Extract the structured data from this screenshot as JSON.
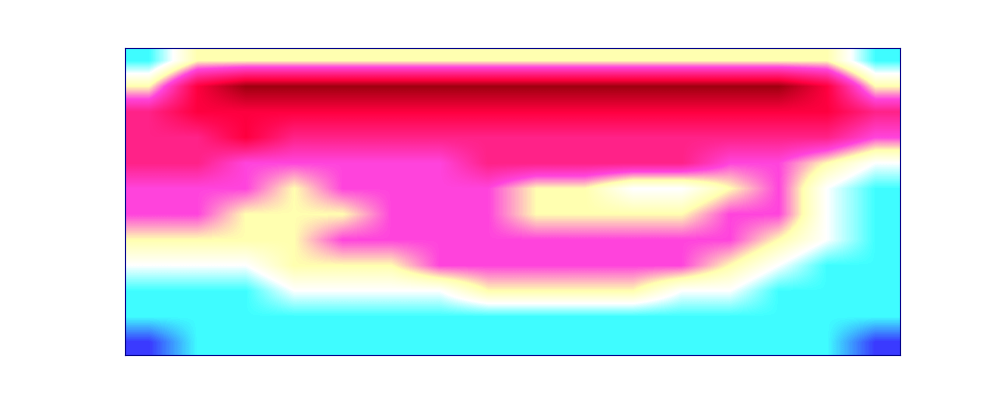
{
  "chart_data": {
    "type": "heatmap",
    "tick_labels": false,
    "cells": [
      [
        1,
        3,
        3,
        3,
        3,
        3,
        3,
        3,
        3,
        3,
        3,
        3,
        3,
        3,
        3,
        1
      ],
      [
        3,
        6,
        7,
        7,
        7,
        7,
        7,
        7,
        7,
        7,
        7,
        7,
        7,
        7,
        6,
        3
      ],
      [
        5,
        6,
        6,
        6,
        6,
        6,
        6,
        6,
        6,
        6,
        6,
        6,
        6,
        6,
        6,
        5
      ],
      [
        5,
        5,
        6,
        5,
        5,
        5,
        5,
        5,
        5,
        5,
        5,
        5,
        5,
        5,
        5,
        4
      ],
      [
        5,
        5,
        4,
        4,
        4,
        4,
        4,
        5,
        5,
        5,
        5,
        5,
        4,
        4,
        3,
        2
      ],
      [
        4,
        4,
        4,
        3,
        4,
        4,
        4,
        4,
        3,
        3,
        2,
        2,
        3,
        4,
        2,
        1
      ],
      [
        4,
        4,
        3,
        3,
        3,
        4,
        4,
        4,
        3,
        3,
        3,
        3,
        4,
        4,
        2,
        1
      ],
      [
        3,
        3,
        3,
        3,
        4,
        4,
        4,
        4,
        4,
        4,
        4,
        4,
        4,
        3,
        2,
        1
      ],
      [
        2,
        2,
        2,
        3,
        3,
        3,
        4,
        4,
        4,
        4,
        4,
        4,
        3,
        2,
        1,
        1
      ],
      [
        1,
        1,
        1,
        2,
        2,
        2,
        2,
        3,
        3,
        3,
        3,
        2,
        2,
        1,
        1,
        1
      ],
      [
        1,
        1,
        1,
        1,
        1,
        1,
        1,
        1,
        1,
        1,
        1,
        1,
        1,
        1,
        1,
        1
      ],
      [
        0,
        1,
        1,
        1,
        1,
        1,
        1,
        1,
        1,
        1,
        1,
        1,
        1,
        1,
        1,
        0
      ]
    ]
  }
}
